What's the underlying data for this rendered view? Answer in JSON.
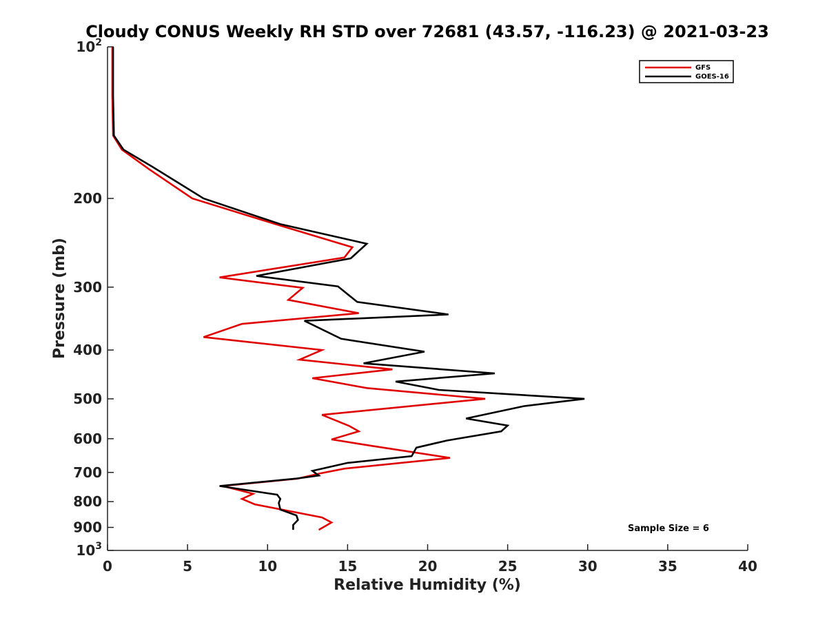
{
  "chart_data": {
    "type": "line",
    "title": "Cloudy CONUS Weekly RH STD over 72681 (43.57, -116.23) @ 2021-03-23",
    "xlabel": "Relative Humidity (%)",
    "ylabel": "Pressure (mb)",
    "xlim": [
      0,
      40
    ],
    "ylim": [
      1000,
      100
    ],
    "y_scale": "log",
    "y_reversed": true,
    "x_ticks": [
      0,
      5,
      10,
      15,
      20,
      25,
      30,
      35,
      40
    ],
    "x_tick_labels": [
      "0",
      "5",
      "10",
      "15",
      "20",
      "25",
      "30",
      "35",
      "40"
    ],
    "y_ticks": [
      100,
      200,
      300,
      400,
      500,
      600,
      700,
      800,
      900,
      1000
    ],
    "y_tick_labels": [
      {
        "base": "10",
        "exp": "2"
      },
      {
        "base": "200",
        "exp": ""
      },
      {
        "base": "300",
        "exp": ""
      },
      {
        "base": "400",
        "exp": ""
      },
      {
        "base": "500",
        "exp": ""
      },
      {
        "base": "600",
        "exp": ""
      },
      {
        "base": "700",
        "exp": ""
      },
      {
        "base": "800",
        "exp": ""
      },
      {
        "base": "900",
        "exp": ""
      },
      {
        "base": "10",
        "exp": "3"
      }
    ],
    "grid": false,
    "legend_position": "top-right",
    "annotation": "Sample Size = 6",
    "series": [
      {
        "name": "GFS",
        "color": "#e00000",
        "points": [
          {
            "p": 100,
            "rh": 0.3
          },
          {
            "p": 125,
            "rh": 0.3
          },
          {
            "p": 150,
            "rh": 0.35
          },
          {
            "p": 160,
            "rh": 0.9
          },
          {
            "p": 175,
            "rh": 2.6
          },
          {
            "p": 200,
            "rh": 5.3
          },
          {
            "p": 225,
            "rh": 10.5
          },
          {
            "p": 250,
            "rh": 15.3
          },
          {
            "p": 262,
            "rh": 14.8
          },
          {
            "p": 287,
            "rh": 7.0
          },
          {
            "p": 301,
            "rh": 12.2
          },
          {
            "p": 318,
            "rh": 11.3
          },
          {
            "p": 338,
            "rh": 15.7
          },
          {
            "p": 355,
            "rh": 8.4
          },
          {
            "p": 377,
            "rh": 6.0
          },
          {
            "p": 400,
            "rh": 13.4
          },
          {
            "p": 418,
            "rh": 12.0
          },
          {
            "p": 437,
            "rh": 17.8
          },
          {
            "p": 455,
            "rh": 12.8
          },
          {
            "p": 476,
            "rh": 16.2
          },
          {
            "p": 500,
            "rh": 23.6
          },
          {
            "p": 538,
            "rh": 13.4
          },
          {
            "p": 566,
            "rh": 15.1
          },
          {
            "p": 580,
            "rh": 15.7
          },
          {
            "p": 602,
            "rh": 14.0
          },
          {
            "p": 620,
            "rh": 16.5
          },
          {
            "p": 655,
            "rh": 21.4
          },
          {
            "p": 688,
            "rh": 14.8
          },
          {
            "p": 703,
            "rh": 13.3
          },
          {
            "p": 720,
            "rh": 11.9
          },
          {
            "p": 745,
            "rh": 7.2
          },
          {
            "p": 772,
            "rh": 9.1
          },
          {
            "p": 790,
            "rh": 8.4
          },
          {
            "p": 810,
            "rh": 9.2
          },
          {
            "p": 860,
            "rh": 13.4
          },
          {
            "p": 880,
            "rh": 14.0
          },
          {
            "p": 910,
            "rh": 13.2
          }
        ]
      },
      {
        "name": "GOES-16",
        "color": "#000000",
        "points": [
          {
            "p": 100,
            "rh": 0.35
          },
          {
            "p": 125,
            "rh": 0.35
          },
          {
            "p": 150,
            "rh": 0.4
          },
          {
            "p": 160,
            "rh": 1.0
          },
          {
            "p": 173,
            "rh": 2.8
          },
          {
            "p": 200,
            "rh": 6.0
          },
          {
            "p": 225,
            "rh": 10.8
          },
          {
            "p": 246,
            "rh": 16.2
          },
          {
            "p": 263,
            "rh": 15.2
          },
          {
            "p": 285,
            "rh": 9.3
          },
          {
            "p": 299,
            "rh": 14.4
          },
          {
            "p": 321,
            "rh": 15.6
          },
          {
            "p": 340,
            "rh": 21.3
          },
          {
            "p": 350,
            "rh": 12.3
          },
          {
            "p": 380,
            "rh": 14.6
          },
          {
            "p": 403,
            "rh": 19.8
          },
          {
            "p": 425,
            "rh": 16.0
          },
          {
            "p": 445,
            "rh": 24.2
          },
          {
            "p": 462,
            "rh": 18.0
          },
          {
            "p": 480,
            "rh": 20.7
          },
          {
            "p": 500,
            "rh": 29.8
          },
          {
            "p": 517,
            "rh": 26.0
          },
          {
            "p": 547,
            "rh": 22.4
          },
          {
            "p": 565,
            "rh": 25.0
          },
          {
            "p": 580,
            "rh": 24.6
          },
          {
            "p": 605,
            "rh": 21.2
          },
          {
            "p": 625,
            "rh": 19.3
          },
          {
            "p": 650,
            "rh": 19.0
          },
          {
            "p": 670,
            "rh": 15.0
          },
          {
            "p": 695,
            "rh": 12.8
          },
          {
            "p": 710,
            "rh": 13.2
          },
          {
            "p": 720,
            "rh": 11.8
          },
          {
            "p": 745,
            "rh": 7.0
          },
          {
            "p": 775,
            "rh": 10.6
          },
          {
            "p": 790,
            "rh": 10.8
          },
          {
            "p": 805,
            "rh": 10.7
          },
          {
            "p": 830,
            "rh": 10.8
          },
          {
            "p": 852,
            "rh": 11.8
          },
          {
            "p": 870,
            "rh": 11.9
          },
          {
            "p": 890,
            "rh": 11.6
          },
          {
            "p": 910,
            "rh": 11.6
          }
        ]
      }
    ]
  }
}
